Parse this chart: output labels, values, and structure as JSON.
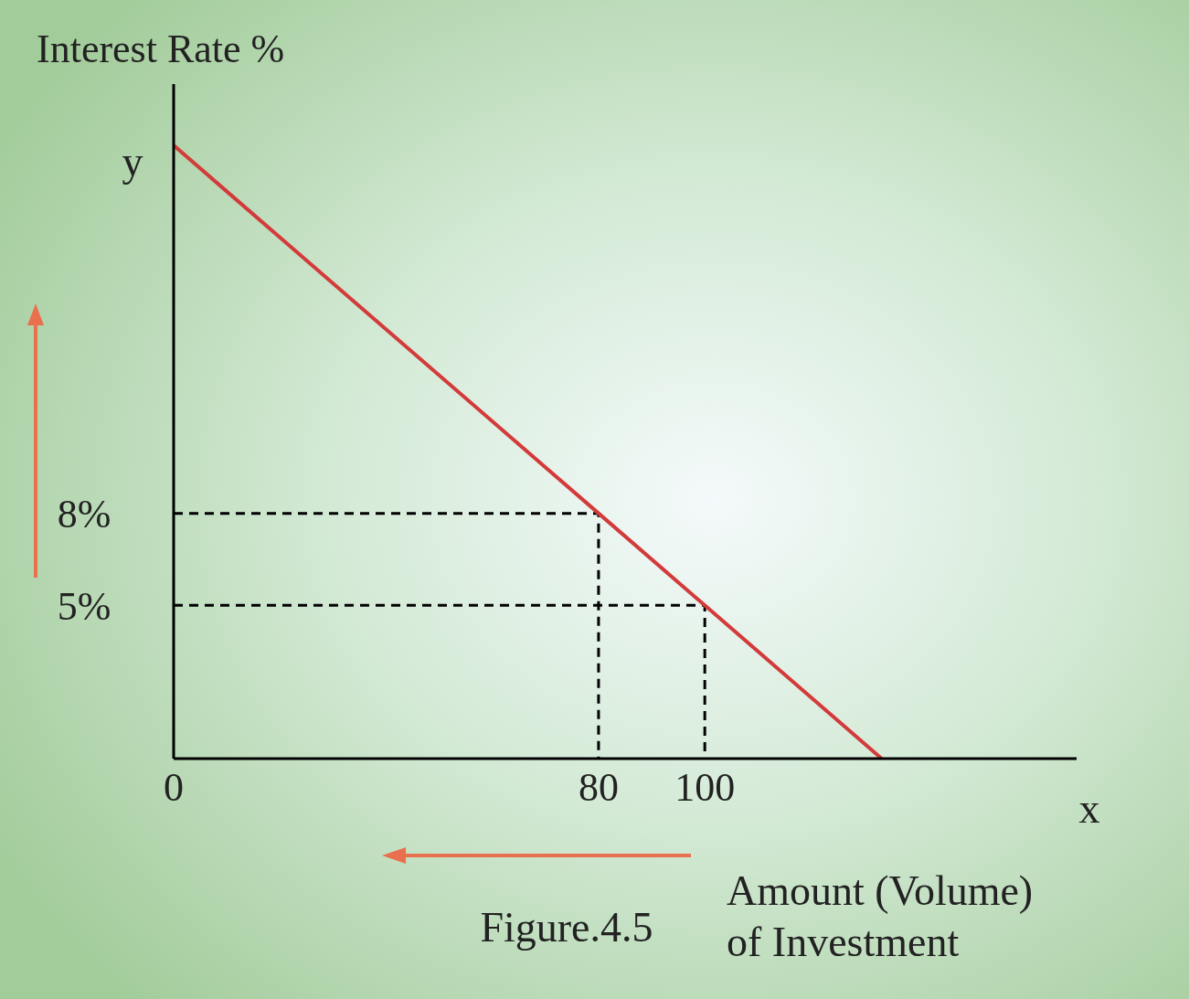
{
  "chart_data": {
    "type": "line",
    "xlabel": "Amount (Volume) of Investment",
    "ylabel": "Interest Rate %",
    "annotations": [
      "y",
      "x",
      "Figure.4.5"
    ],
    "xlim": [
      0,
      170
    ],
    "ylim": [
      0,
      22
    ],
    "xticks": [
      0,
      80,
      100
    ],
    "yticks": [
      {
        "value": 5,
        "label": "5%"
      },
      {
        "value": 8,
        "label": "8%"
      }
    ],
    "series": [
      {
        "color": "#d33b3b",
        "x": [
          0,
          80,
          100,
          133.3
        ],
        "values": [
          20,
          8,
          5,
          0
        ],
        "line_style": "solid"
      },
      {
        "color": "#000000",
        "x": [
          0,
          80,
          80
        ],
        "values": [
          8,
          8,
          0
        ],
        "line_style": "dashed"
      },
      {
        "color": "#000000",
        "x": [
          0,
          100,
          100
        ],
        "values": [
          5,
          5,
          0
        ],
        "line_style": "dashed"
      }
    ]
  }
}
